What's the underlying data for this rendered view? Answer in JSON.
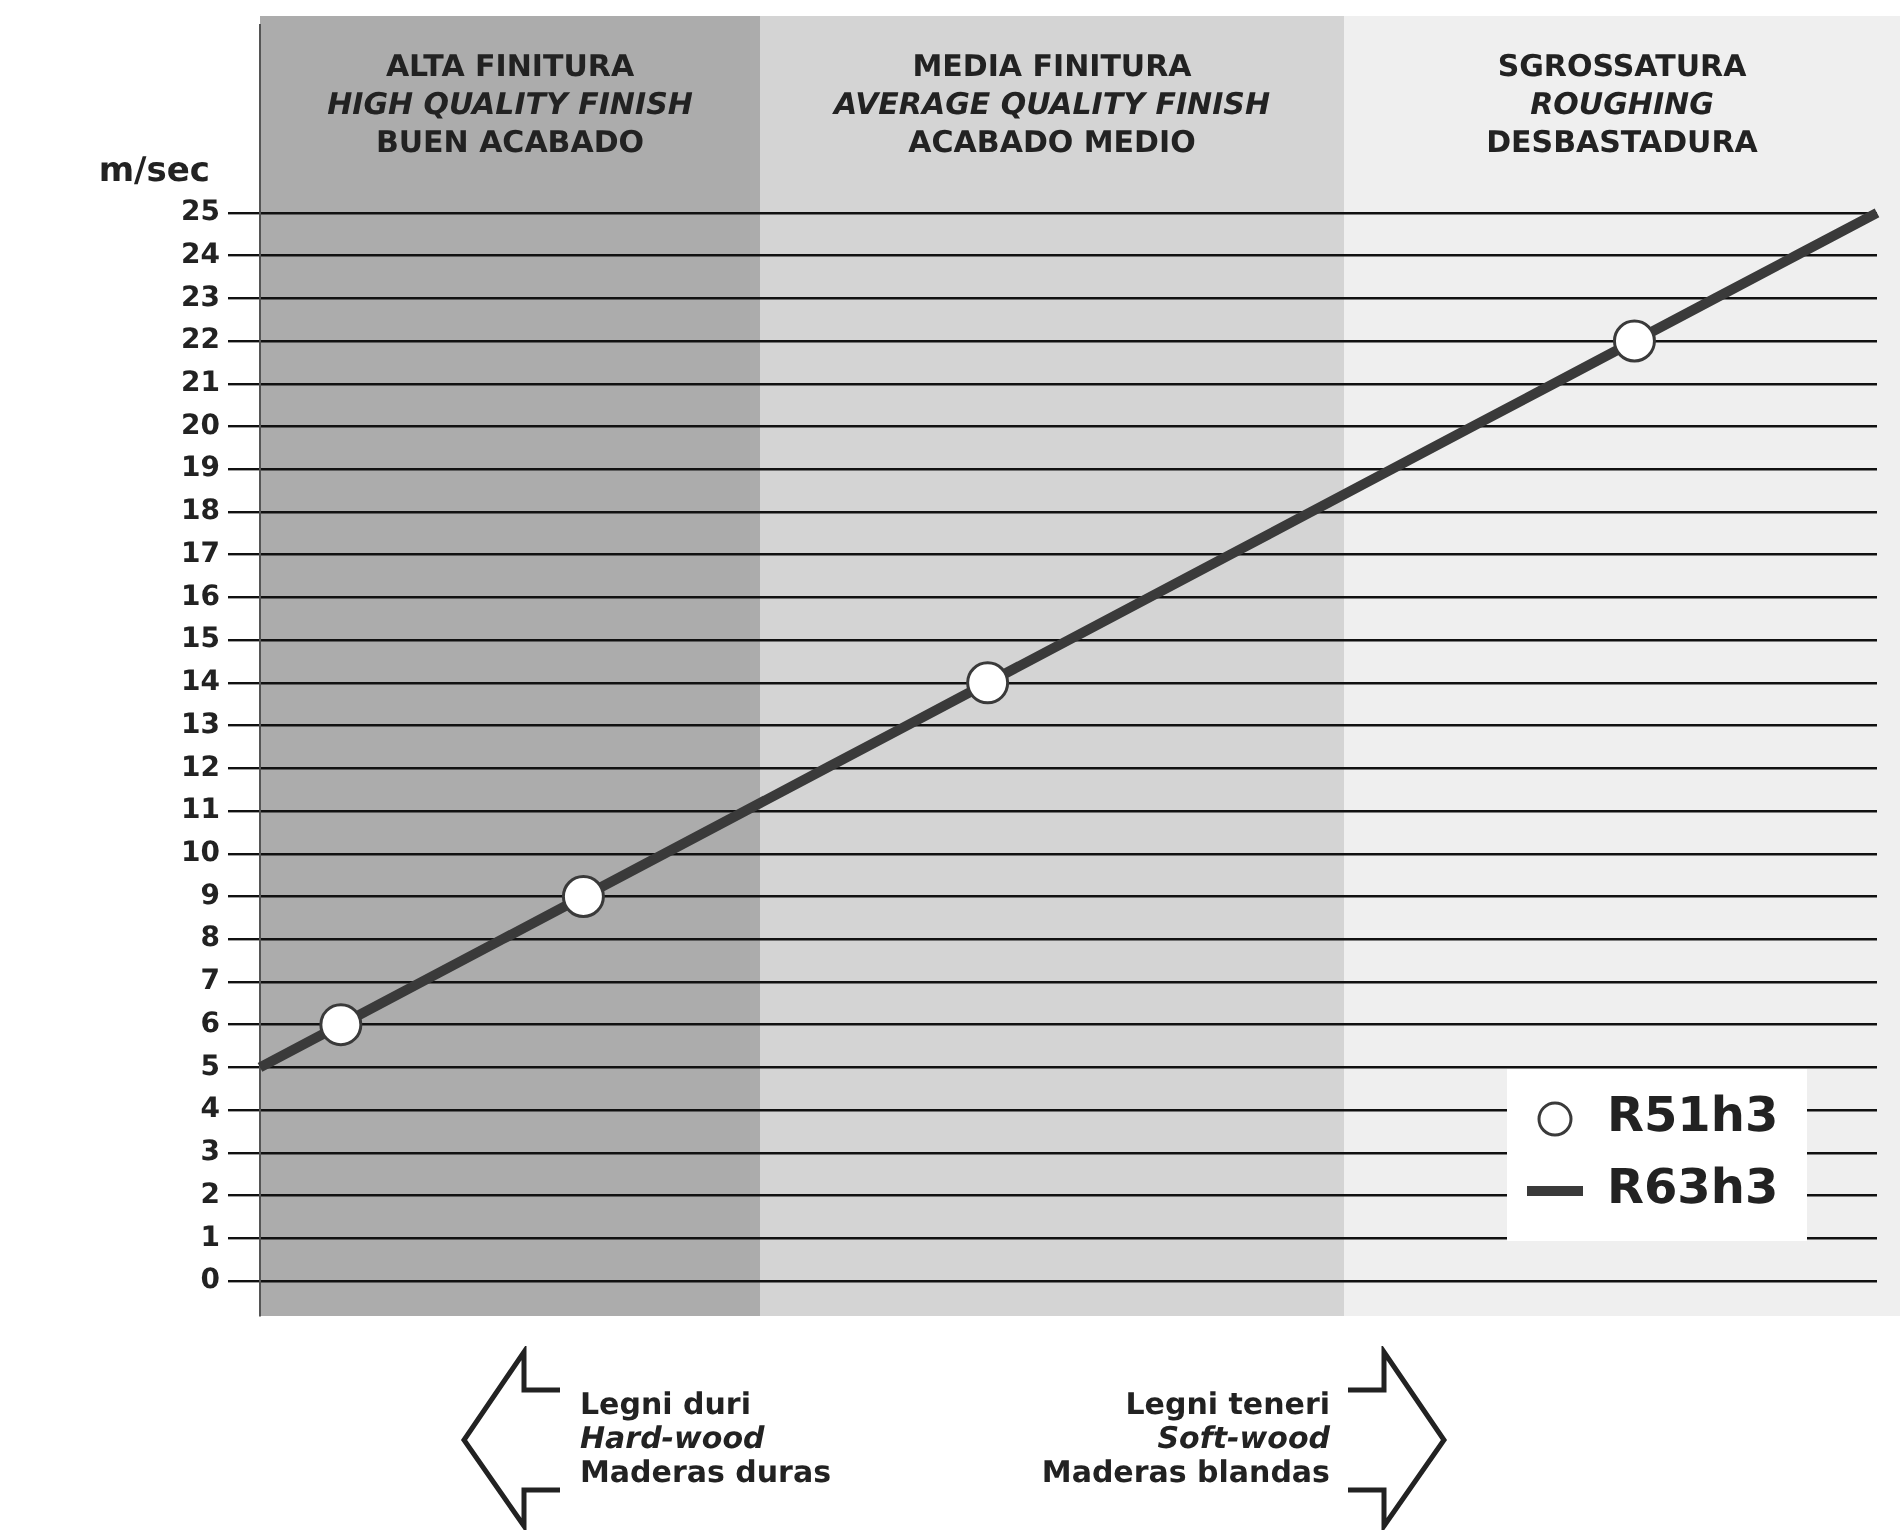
{
  "chart_data": {
    "type": "line",
    "ylabel": "m/sec",
    "categories": [
      null,
      null,
      null,
      null,
      null,
      null,
      null,
      null,
      null,
      null,
      null,
      null,
      null,
      null,
      null,
      null,
      null,
      null,
      null,
      null,
      null
    ],
    "ylim": [
      -0.8,
      29.4
    ],
    "yticks": [
      0,
      1,
      2,
      3,
      4,
      5,
      6,
      7,
      8,
      9,
      10,
      11,
      12,
      13,
      14,
      15,
      16,
      17,
      18,
      19,
      20,
      21,
      22,
      23,
      24,
      25
    ],
    "tick_labels": "y",
    "grid": "y",
    "legend": "bottom right",
    "series": [
      {
        "name": "R63h3",
        "color": "#3a3a3a",
        "values": [
          5,
          null,
          7,
          8,
          null,
          10,
          11,
          12,
          13,
          null,
          15,
          16,
          17,
          18,
          19,
          20,
          21,
          null,
          23,
          24,
          25
        ],
        "marker": "none",
        "line_style": "solid"
      },
      {
        "name": "R51h3",
        "type": "scatter",
        "color": "#3a3a3a",
        "values": [
          null,
          6,
          null,
          null,
          9,
          null,
          null,
          null,
          null,
          14,
          null,
          null,
          null,
          null,
          null,
          null,
          null,
          22,
          null,
          null,
          null
        ],
        "marker": "circle"
      }
    ],
    "annotations": [
      "ALTA FINITURA\nHIGH QUALITY FINISH\nBUEN ACABADO",
      "MEDIA FINITURA\nAVERAGE QUALITY FINISH\nACABADO MEDIO",
      "SGROSSATURA\nROUGHING\nDESBASTADURA",
      "Legni duri\nHard-wood\nMaderas duras",
      "Legni teneri\nSoft-wood\nMaderas blandas"
    ]
  }
}
